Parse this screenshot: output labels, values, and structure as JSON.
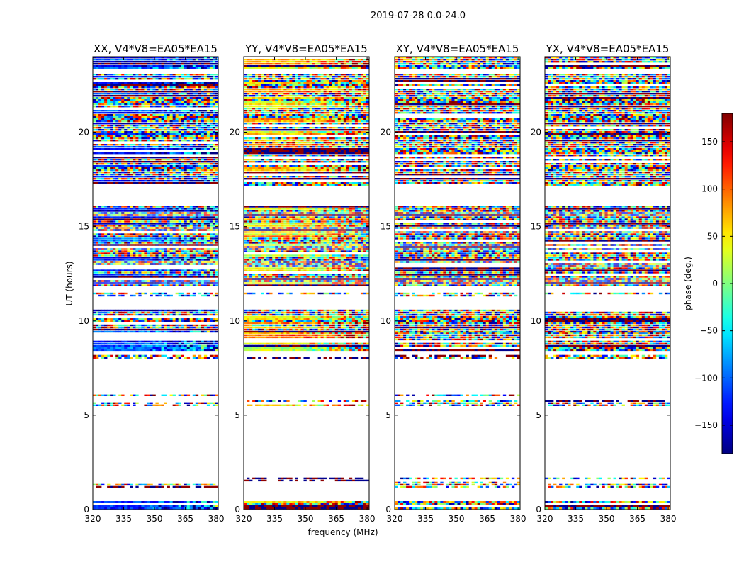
{
  "figure_title": "2019-07-28 0.0-24.0",
  "chart_data": {
    "type": "heatmap",
    "xlabel": "frequency (MHz)",
    "ylabel": "UT (hours)",
    "xlim": [
      320,
      381
    ],
    "ylim": [
      0,
      24
    ],
    "xticks": [
      320,
      335,
      350,
      365,
      380
    ],
    "yticks": [
      0,
      5,
      10,
      15,
      20
    ],
    "colorbar": {
      "label": "phase (deg.)",
      "range": [
        -180,
        180
      ],
      "ticks": [
        150,
        100,
        50,
        0,
        -50,
        -100,
        -150
      ],
      "tick_labels": [
        "150",
        "100",
        "50",
        "0",
        "−50",
        "−100",
        "−150"
      ],
      "colormap": "jet"
    },
    "panels": [
      {
        "title": "XX, V4*V8=EA05*EA15",
        "polarization": "XX",
        "style": "parallel",
        "base_phase": -130
      },
      {
        "title": "YY, V4*V8=EA05*EA15",
        "polarization": "YY",
        "style": "parallel",
        "base_phase": 60
      },
      {
        "title": "XY, V4*V8=EA05*EA15",
        "polarization": "XY",
        "style": "cross",
        "base_phase": null
      },
      {
        "title": "YX, V4*V8=EA05*EA15",
        "polarization": "YX",
        "style": "cross",
        "base_phase": null
      }
    ],
    "data_rows_ut": [
      {
        "ut_start": 0.0,
        "ut_end": 0.45,
        "kind": "noise"
      },
      {
        "ut_start": 1.2,
        "ut_end": 1.7,
        "kind": "sparse"
      },
      {
        "ut_start": 5.5,
        "ut_end": 5.8,
        "kind": "sparse"
      },
      {
        "ut_start": 6.0,
        "ut_end": 6.1,
        "kind": "sparse"
      },
      {
        "ut_start": 8.0,
        "ut_end": 8.2,
        "kind": "sparse"
      },
      {
        "ut_start": 8.4,
        "ut_end": 9.4,
        "kind": "strong"
      },
      {
        "ut_start": 9.4,
        "ut_end": 10.6,
        "kind": "noise"
      },
      {
        "ut_start": 11.3,
        "ut_end": 11.5,
        "kind": "sparse"
      },
      {
        "ut_start": 11.9,
        "ut_end": 16.1,
        "kind": "noise"
      },
      {
        "ut_start": 17.2,
        "ut_end": 23.1,
        "kind": "noise"
      },
      {
        "ut_start": 23.4,
        "ut_end": 24.0,
        "kind": "strong"
      }
    ]
  }
}
